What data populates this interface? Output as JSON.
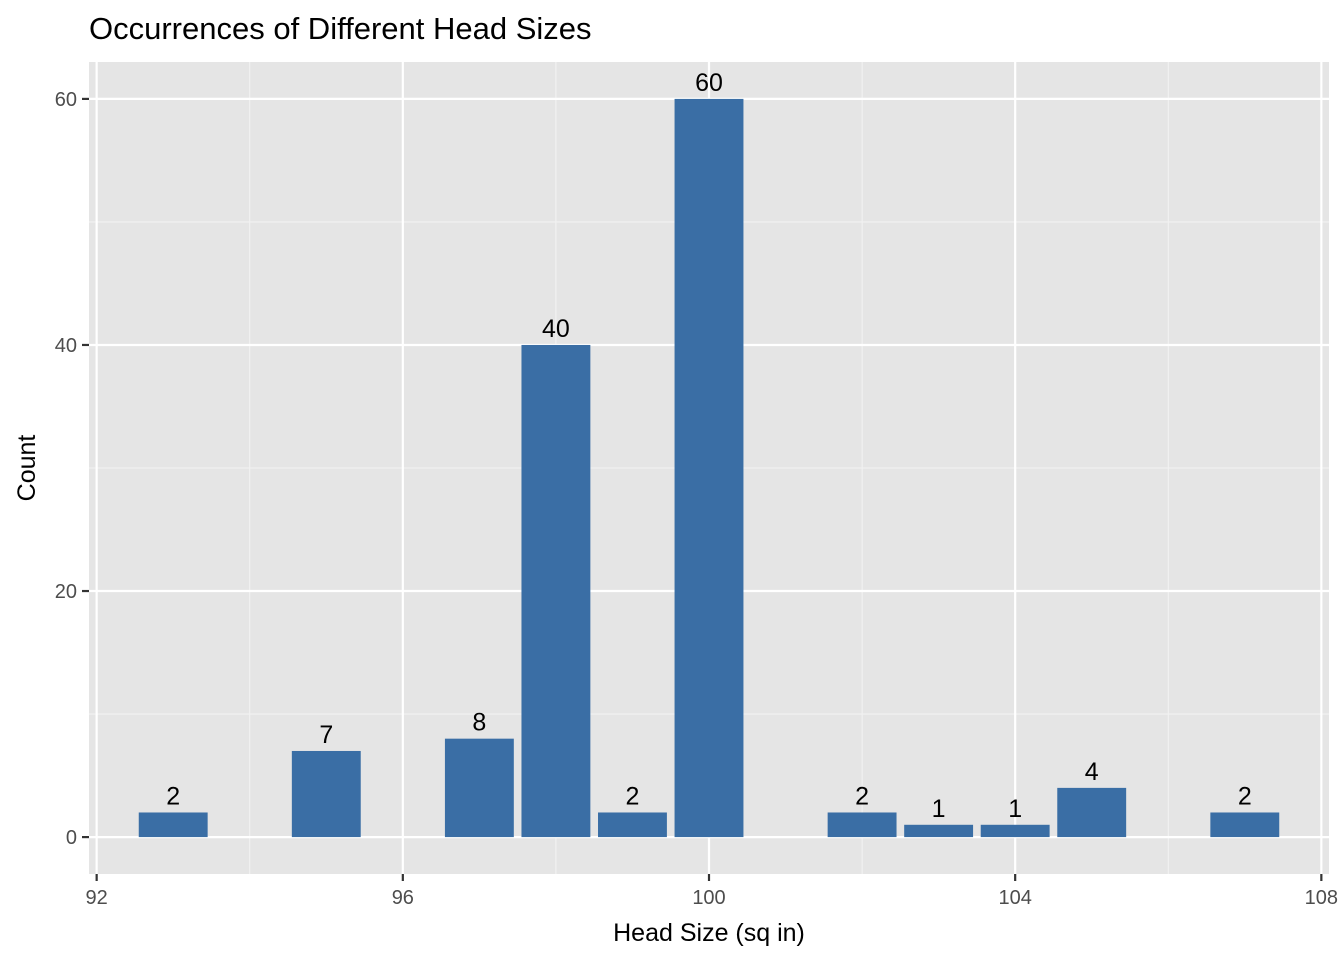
{
  "chart_data": {
    "type": "bar",
    "title": "Occurrences of Different Head Sizes",
    "xlabel": "Head Size (sq in)",
    "ylabel": "Count",
    "x": [
      93,
      95,
      97,
      98,
      99,
      100,
      102,
      103,
      104,
      105,
      107
    ],
    "values": [
      2,
      7,
      8,
      40,
      2,
      60,
      2,
      1,
      1,
      4,
      2
    ],
    "data_labels": [
      "2",
      "7",
      "8",
      "40",
      "2",
      "60",
      "2",
      "1",
      "1",
      "4",
      "2"
    ],
    "xlim": [
      91.9,
      108.1
    ],
    "ylim": [
      -3,
      63
    ],
    "x_ticks": [
      92,
      96,
      100,
      104,
      108
    ],
    "x_tick_labels": [
      "92",
      "96",
      "100",
      "104",
      "108"
    ],
    "x_minor_ticks": [
      94,
      98,
      102,
      106
    ],
    "y_ticks": [
      0,
      20,
      40,
      60
    ],
    "y_tick_labels": [
      "0",
      "20",
      "40",
      "60"
    ],
    "y_minor_ticks": [
      10,
      30,
      50
    ],
    "bar_width": 0.9,
    "grid": true,
    "legend": "none",
    "colors": {
      "bar": "#3a6ea5",
      "panel": "#e5e5e5",
      "grid_major": "#ffffff",
      "grid_minor": "#f2f2f2"
    }
  }
}
